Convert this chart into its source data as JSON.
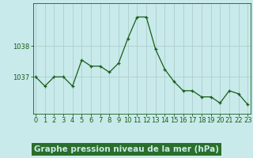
{
  "x": [
    0,
    1,
    2,
    3,
    4,
    5,
    6,
    7,
    8,
    9,
    10,
    11,
    12,
    13,
    14,
    15,
    16,
    17,
    18,
    19,
    20,
    21,
    22,
    23
  ],
  "y": [
    1037.0,
    1036.7,
    1037.0,
    1037.0,
    1036.7,
    1037.55,
    1037.35,
    1037.35,
    1037.15,
    1037.45,
    1038.25,
    1038.95,
    1038.95,
    1037.9,
    1037.25,
    1036.85,
    1036.55,
    1036.55,
    1036.35,
    1036.35,
    1036.15,
    1036.55,
    1036.45,
    1036.1
  ],
  "xlabel": "Graphe pression niveau de la mer (hPa)",
  "bg_color": "#c8eaea",
  "line_color": "#1a5c1a",
  "marker_color": "#1a5c1a",
  "grid_color": "#b0cece",
  "yticks": [
    1037,
    1038
  ],
  "ylim": [
    1035.8,
    1039.4
  ],
  "xlim": [
    -0.3,
    23.3
  ],
  "xtick_labels": [
    "0",
    "1",
    "2",
    "3",
    "4",
    "5",
    "6",
    "7",
    "8",
    "9",
    "10",
    "11",
    "12",
    "13",
    "14",
    "15",
    "16",
    "17",
    "18",
    "19",
    "20",
    "21",
    "22",
    "23"
  ],
  "xlabel_fontsize": 7.5,
  "tick_fontsize": 6,
  "axis_color": "#1a5c1a",
  "bottom_bar_color": "#2a6e2a",
  "bottom_bar_text_color": "#c8eaea"
}
